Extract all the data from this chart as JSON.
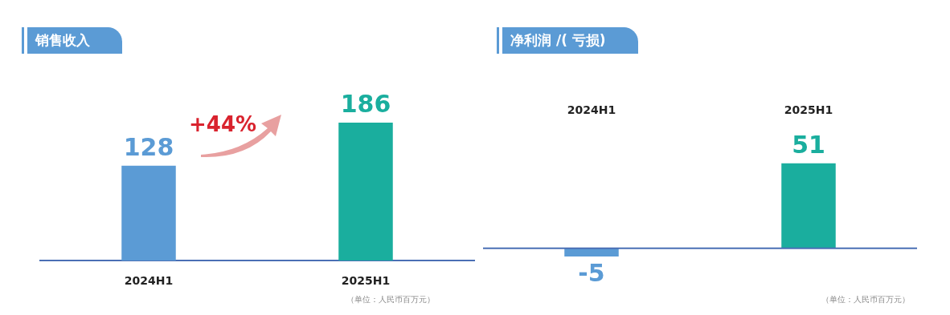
{
  "chart_data": [
    {
      "type": "bar",
      "title": "销售收入",
      "categories": [
        "2024H1",
        "2025H1"
      ],
      "values": [
        128,
        186
      ],
      "colors": [
        "#5b9bd5",
        "#1aae9e"
      ],
      "data_labels": true,
      "annotations": [
        "+44%",
        "（单位：人民币百万元）"
      ]
    },
    {
      "type": "bar",
      "title": "净利润 /( 亏损)",
      "categories": [
        "2024H1",
        "2025H1"
      ],
      "values": [
        -5,
        51
      ],
      "colors": [
        "#5b9bd5",
        "#1aae9e"
      ],
      "data_labels": true,
      "ref_lines": [
        {
          "axis": "y",
          "value": 0,
          "color": "#4a6fb5"
        }
      ],
      "annotations": [
        "（单位：人民币百万元）"
      ]
    }
  ]
}
